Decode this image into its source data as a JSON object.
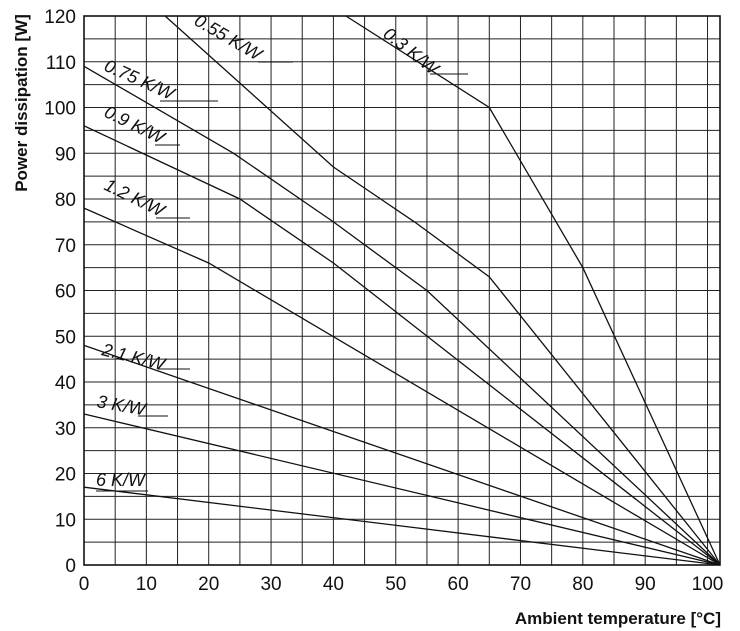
{
  "chart_data": {
    "type": "line",
    "xlabel": "Ambient temperature [°C]",
    "ylabel": "Power dissipation [W]",
    "xlim": [
      0,
      102
    ],
    "ylim": [
      0,
      120
    ],
    "grid": true,
    "x_ticks": [
      0,
      10,
      20,
      30,
      40,
      50,
      60,
      70,
      80,
      90,
      100
    ],
    "y_ticks": [
      0,
      10,
      20,
      30,
      40,
      50,
      60,
      70,
      80,
      90,
      100,
      110,
      120
    ],
    "series": [
      {
        "name": "0.3 K/W",
        "points": [
          [
            42,
            120
          ],
          [
            65,
            100
          ],
          [
            80,
            65
          ],
          [
            102,
            0
          ]
        ]
      },
      {
        "name": "0.55 K/W",
        "points": [
          [
            13,
            120
          ],
          [
            40,
            87
          ],
          [
            53,
            75
          ],
          [
            65,
            63
          ],
          [
            102,
            0
          ]
        ]
      },
      {
        "name": "0.75 K/W",
        "points": [
          [
            0,
            109
          ],
          [
            24,
            90
          ],
          [
            40,
            75
          ],
          [
            55,
            60
          ],
          [
            102,
            0
          ]
        ]
      },
      {
        "name": "0.9 K/W",
        "points": [
          [
            0,
            96
          ],
          [
            25,
            80
          ],
          [
            40,
            66
          ],
          [
            102,
            0
          ]
        ]
      },
      {
        "name": "1.2 K/W",
        "points": [
          [
            0,
            78
          ],
          [
            20,
            66
          ],
          [
            102,
            0
          ]
        ]
      },
      {
        "name": "2.1 K/W",
        "points": [
          [
            0,
            48
          ],
          [
            102,
            0
          ]
        ]
      },
      {
        "name": "3 K/W",
        "points": [
          [
            0,
            33
          ],
          [
            102,
            0
          ]
        ]
      },
      {
        "name": "6 K/W",
        "points": [
          [
            0,
            17
          ],
          [
            102,
            0
          ]
        ]
      }
    ],
    "labels": [
      {
        "series": "0.3 K/W",
        "text": "0.3 K/W"
      },
      {
        "series": "0.55 K/W",
        "text": "0.55 K/W"
      },
      {
        "series": "0.75 K/W",
        "text": "0.75 K/W"
      },
      {
        "series": "0.9 K/W",
        "text": "0.9 K/W"
      },
      {
        "series": "1.2 K/W",
        "text": "1.2 K/W"
      },
      {
        "series": "2.1 K/W",
        "text": "2.1 K/W"
      },
      {
        "series": "3 K/W",
        "text": "3 K/W"
      },
      {
        "series": "6 K/W",
        "text": "6 K/W"
      }
    ]
  }
}
